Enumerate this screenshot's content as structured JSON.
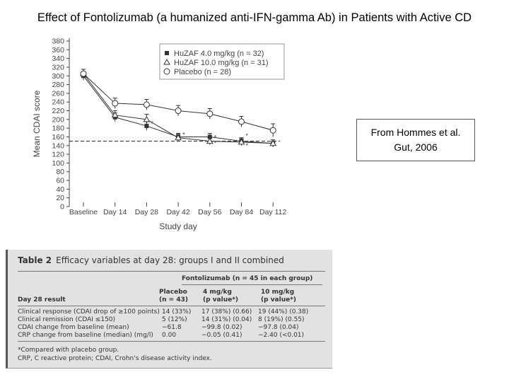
{
  "title": "Effect of Fontolizumab (a humanized anti-IFN-gamma Ab) in Patients with Active CD",
  "reference": {
    "line1": "From Hommes et al.",
    "line2": "Gut, 2006"
  },
  "colors": {
    "axis": "#444444",
    "series": "#333333",
    "dashed": "#222222"
  },
  "chart_data": {
    "type": "line",
    "title": "",
    "xlabel": "Study day",
    "ylabel": "Mean CDAI score",
    "ylim": [
      0,
      380
    ],
    "yticks": [
      0,
      20,
      40,
      60,
      80,
      100,
      120,
      140,
      160,
      180,
      200,
      220,
      240,
      260,
      280,
      300,
      320,
      340,
      360,
      380
    ],
    "yticklabels": [
      "0",
      "20",
      "40",
      "60",
      "80",
      "100",
      "120",
      "140",
      "160",
      "180",
      "200",
      "220",
      "240",
      "260",
      "280",
      "300",
      "320",
      "340",
      "360",
      "380"
    ],
    "categories": [
      "Baseline",
      "Day 14",
      "Day 28",
      "Day 42",
      "Day 56",
      "Day 84",
      "Day 112"
    ],
    "reference_line": 150,
    "legend_position": "top-right",
    "series": [
      {
        "name": "HuZAF 4.0 mg/kg (n = 32)",
        "marker": "filled-square",
        "values": [
          300,
          205,
          185,
          160,
          160,
          150,
          145
        ],
        "errors": [
          10,
          10,
          10,
          8,
          8,
          8,
          8
        ]
      },
      {
        "name": "HuZAF 10.0 mg/kg (n = 31)",
        "marker": "triangle",
        "values": [
          305,
          210,
          200,
          158,
          150,
          148,
          145
        ],
        "errors": [
          10,
          10,
          12,
          8,
          8,
          8,
          8
        ]
      },
      {
        "name": "Placebo (n = 28)",
        "marker": "circle",
        "values": [
          305,
          237,
          234,
          220,
          213,
          195,
          175
        ],
        "errors": [
          10,
          12,
          12,
          12,
          12,
          12,
          15
        ]
      }
    ],
    "significance_marks": [
      {
        "category": "Day 28",
        "value": 190,
        "text": "*"
      },
      {
        "category": "Day 42",
        "value": 165,
        "text": "*"
      },
      {
        "category": "Day 56",
        "value": 145,
        "text": "*"
      },
      {
        "category": "Day 56",
        "value": 158,
        "text": "*"
      },
      {
        "category": "Day 84",
        "value": 140,
        "text": "*"
      },
      {
        "category": "Day 84",
        "value": 162,
        "text": "*"
      }
    ]
  },
  "table": {
    "number": "Table 2",
    "caption": "Efficacy variables at day 28: groups I and II combined",
    "group_header": "Fontolizumab (n = 45 in each group)",
    "col_headers": {
      "result": "Day 28 result",
      "placebo_1": "Placebo",
      "placebo_2": "(n = 43)",
      "low_1": "4 mg/kg",
      "low_2": "(p value*)",
      "high_1": "10 mg/kg",
      "high_2": "(p value*)"
    },
    "rows": [
      {
        "label": "Clinical response (CDAI drop of ≥100 points)",
        "placebo": "14 (33%)",
        "low": "17 (38%) (0.66)",
        "high": "19 (44%) (0.38)"
      },
      {
        "label": "Clinical remission (CDAI ≤150)",
        "placebo": "5 (12%)",
        "low": "14 (31%) (0.04)",
        "high": "8 (19%) (0.55)"
      },
      {
        "label": "CDAI change from baseline (mean)",
        "placebo": "−61.8",
        "low": "−99.8 (0.02)",
        "high": "−97.8 (0.04)"
      },
      {
        "label": "CRP change from baseline (median) (mg/l)",
        "placebo": "0.00",
        "low": "−0.05 (0.41)",
        "high": "−2.40 (<0.01)"
      }
    ],
    "footnotes": [
      "*Compared with placebo group.",
      "CRP, C reactive protein; CDAI, Crohn's disease activity index."
    ]
  }
}
